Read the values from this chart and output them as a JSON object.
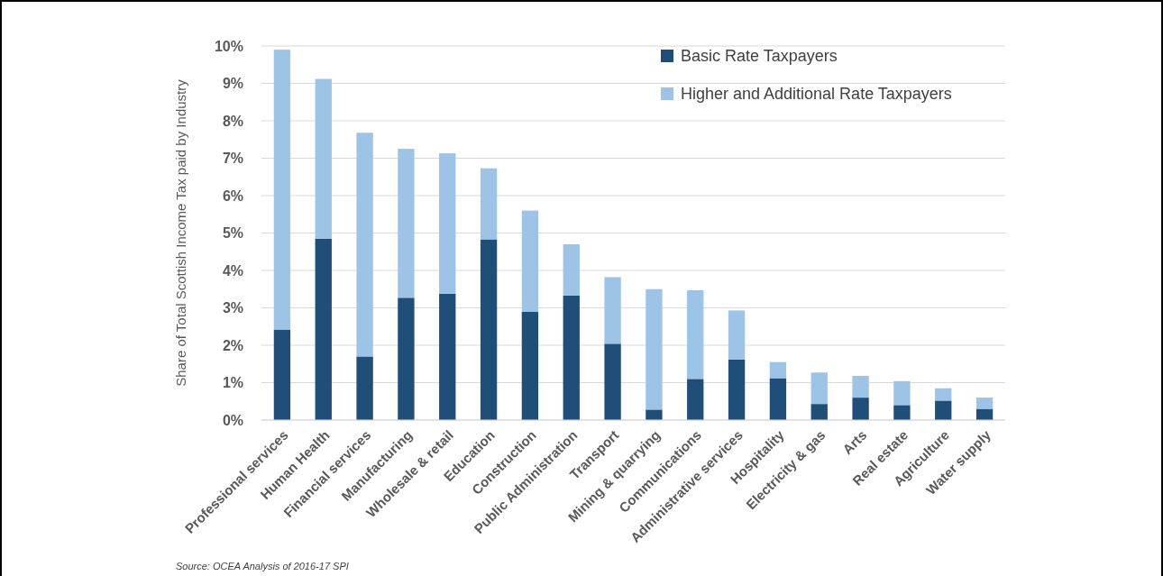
{
  "chart_data": {
    "type": "bar",
    "stacked": true,
    "ylabel": "Share of Total Scottish Income Tax paid by Industry",
    "categories": [
      "Professional services",
      "Human Health",
      "Financial services",
      "Manufacturing",
      "Wholesale & retail",
      "Education",
      "Construction",
      "Public Administration",
      "Transport",
      "Mining & quarrying",
      "Communications",
      "Administrative services",
      "Hospitality",
      "Electricity & gas",
      "Arts",
      "Real estate",
      "Agriculture",
      "Water supply"
    ],
    "series": [
      {
        "name": "Basic Rate Taxpayers",
        "color": "#1f4e79",
        "values": [
          2.42,
          4.85,
          1.7,
          3.27,
          3.38,
          4.83,
          2.9,
          3.33,
          2.04,
          0.28,
          1.1,
          1.62,
          1.12,
          0.43,
          0.6,
          0.4,
          0.52,
          0.3
        ]
      },
      {
        "name": "Higher and Additional Rate Taxpayers",
        "color": "#9dc3e6",
        "values": [
          7.48,
          4.27,
          5.98,
          3.98,
          3.75,
          1.9,
          2.7,
          1.37,
          1.78,
          3.22,
          2.37,
          1.31,
          0.43,
          0.84,
          0.58,
          0.64,
          0.33,
          0.3
        ]
      }
    ],
    "ylim": [
      0,
      10
    ],
    "yticks": [
      {
        "value": 0,
        "label": "0%"
      },
      {
        "value": 1,
        "label": "1%"
      },
      {
        "value": 2,
        "label": "2%"
      },
      {
        "value": 3,
        "label": "3%"
      },
      {
        "value": 4,
        "label": "4%"
      },
      {
        "value": 5,
        "label": "5%"
      },
      {
        "value": 6,
        "label": "6%"
      },
      {
        "value": 7,
        "label": "7%"
      },
      {
        "value": 8,
        "label": "8%"
      },
      {
        "value": 9,
        "label": "9%"
      },
      {
        "value": 10,
        "label": "10%"
      }
    ],
    "grid": "y",
    "legend": "top right",
    "annotations": [
      "Source: OCEA Analysis of 2016-17 SPI"
    ]
  }
}
